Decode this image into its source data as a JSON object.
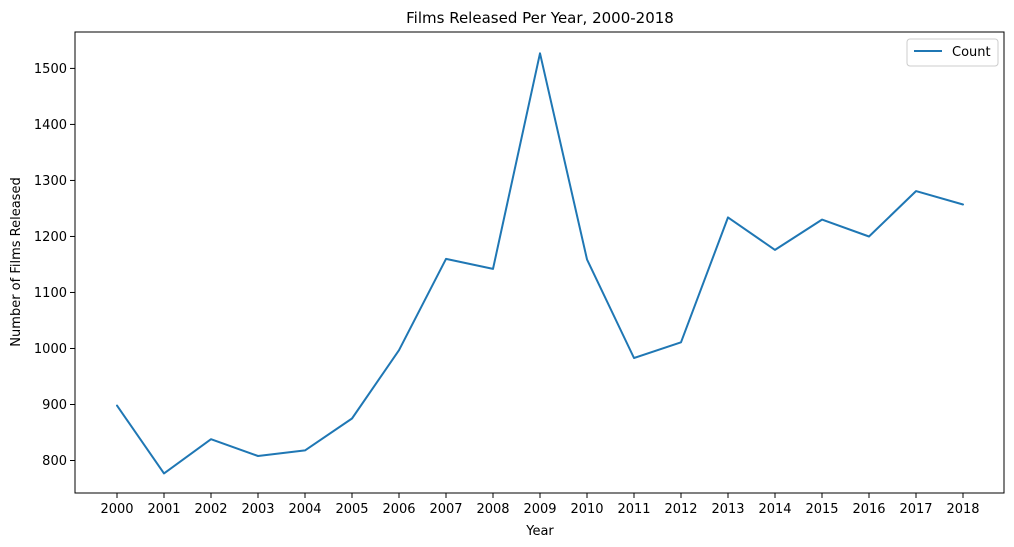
{
  "chart_data": {
    "type": "line",
    "title": "Films Released Per Year, 2000-2018",
    "xlabel": "Year",
    "ylabel": "Number of Films Released",
    "categories": [
      "2000",
      "2001",
      "2002",
      "2003",
      "2004",
      "2005",
      "2006",
      "2007",
      "2008",
      "2009",
      "2010",
      "2011",
      "2012",
      "2013",
      "2014",
      "2015",
      "2016",
      "2017",
      "2018"
    ],
    "series": [
      {
        "name": "Count",
        "color": "#1f77b4",
        "values": [
          898,
          777,
          838,
          808,
          818,
          875,
          997,
          1160,
          1142,
          1527,
          1159,
          983,
          1011,
          1234,
          1176,
          1230,
          1200,
          1281,
          1257
        ]
      }
    ],
    "yticks": [
      800,
      900,
      1000,
      1100,
      1200,
      1300,
      1400,
      1500
    ],
    "ylim": [
      742,
      1565
    ],
    "grid": false,
    "legend_position": "top-right"
  }
}
